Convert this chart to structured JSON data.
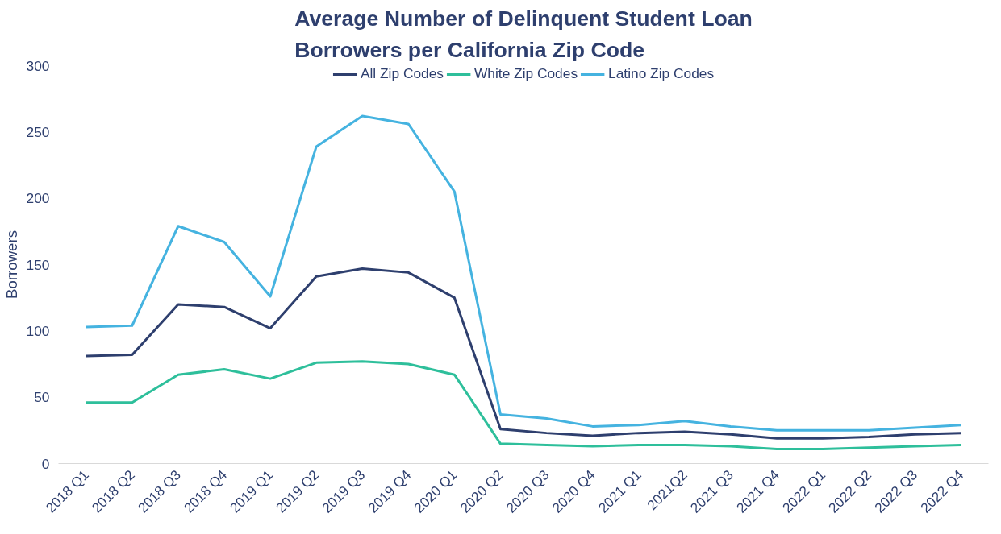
{
  "chart_data": {
    "type": "line",
    "title": "Average Number of Delinquent Student Loan Borrowers per California Zip Code",
    "ylabel": "Borrowers",
    "categories": [
      "2018 Q1",
      "2018 Q2",
      "2018 Q3",
      "2018 Q4",
      "2019 Q1",
      "2019 Q2",
      "2019 Q3",
      "2019 Q4",
      "2020 Q1",
      "2020 Q2",
      "2020 Q3",
      "2020 Q4",
      "2021 Q1",
      "2021Q2",
      "2021 Q3",
      "2021 Q4",
      "2022 Q1",
      "2022 Q2",
      "2022 Q3",
      "2022 Q4"
    ],
    "series": [
      {
        "name": "All Zip Codes",
        "color": "#2e3f6e",
        "values": [
          81,
          82,
          120,
          118,
          102,
          141,
          147,
          144,
          125,
          26,
          23,
          21,
          23,
          24,
          22,
          19,
          19,
          20,
          22,
          23
        ]
      },
      {
        "name": "White Zip Codes",
        "color": "#2ebf9b",
        "values": [
          46,
          46,
          67,
          71,
          64,
          76,
          77,
          75,
          67,
          15,
          14,
          13,
          14,
          14,
          13,
          11,
          11,
          12,
          13,
          14
        ]
      },
      {
        "name": "Latino Zip Codes",
        "color": "#45b3e0",
        "values": [
          103,
          104,
          179,
          167,
          126,
          239,
          262,
          256,
          205,
          37,
          34,
          28,
          29,
          32,
          28,
          25,
          25,
          25,
          27,
          29
        ]
      }
    ],
    "ylim": [
      0,
      300
    ],
    "yticks": [
      0,
      50,
      100,
      150,
      200,
      250,
      300
    ],
    "grid": false,
    "legend": "top",
    "marker": "none",
    "line_style": "solid"
  }
}
